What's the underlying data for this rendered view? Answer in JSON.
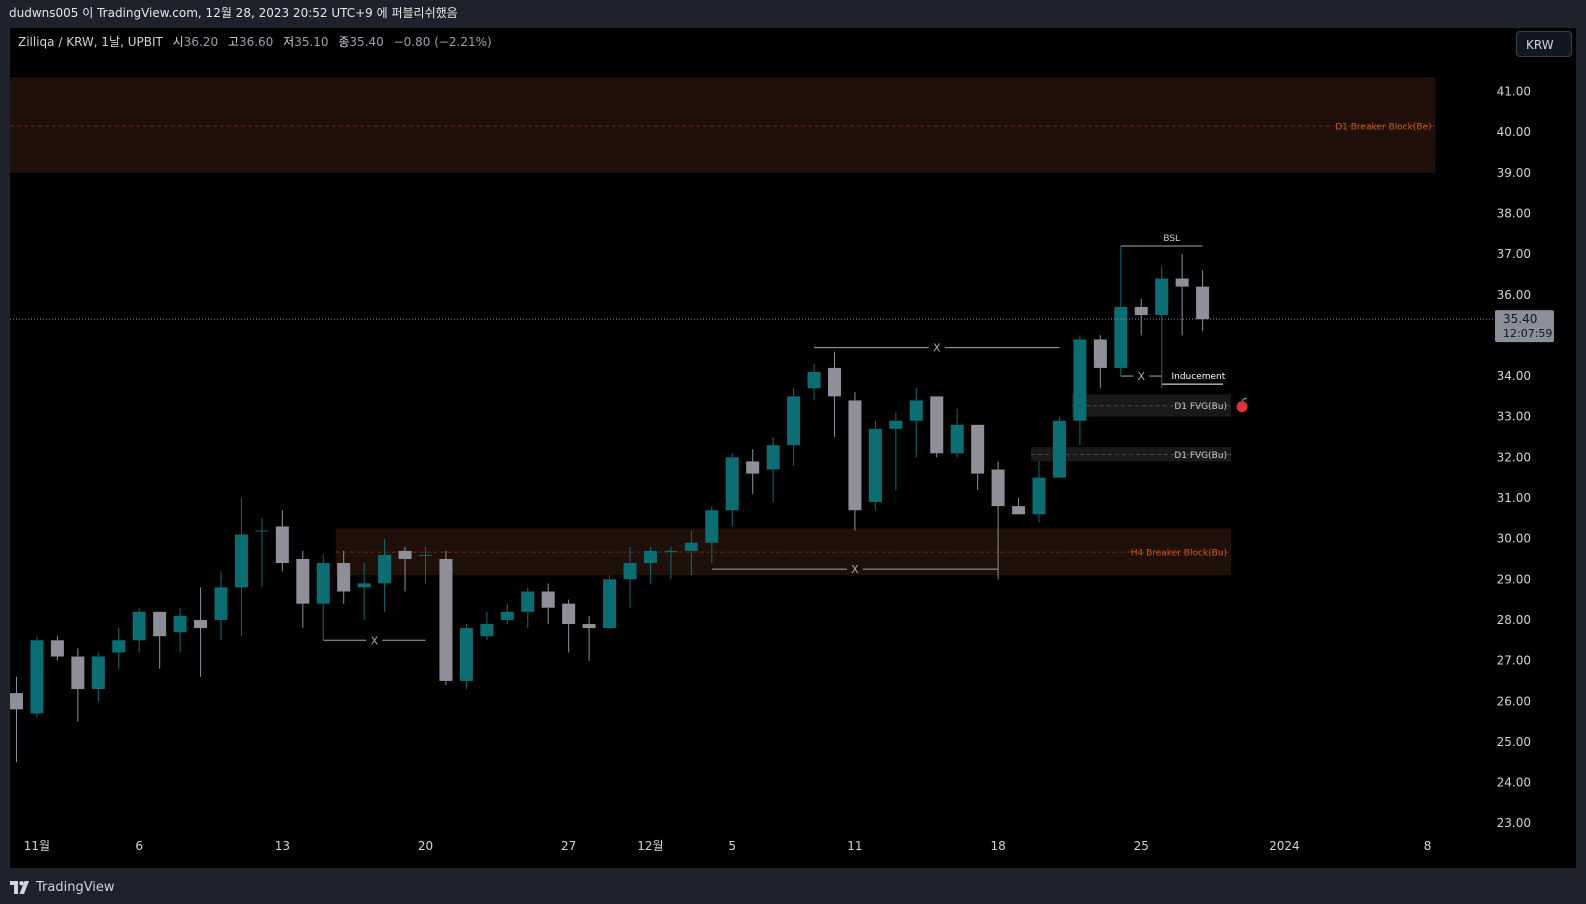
{
  "header": {
    "publish_line": "dudwns005 이 TradingView.com, 12월 28, 2023 20:52 UTC+9 에 퍼블리쉬했음"
  },
  "legend": {
    "symbol": "Zilliqa / KRW, 1날, UPBIT",
    "open_label": "시",
    "open": "36.20",
    "high_label": "고",
    "high": "36.60",
    "low_label": "저",
    "low": "35.10",
    "close_label": "종",
    "close": "35.40",
    "change": "−0.80 (−2.21%)"
  },
  "currency_button": "KRW",
  "footer": {
    "brand": "TradingView"
  },
  "colors": {
    "bull": "#0a6e73",
    "bear": "#8f8f99",
    "zone_fill": "#1f1009",
    "zone_text": "#d1581c",
    "fvg_fill": "#1a1a1a",
    "annotation": "#a4a8b0"
  },
  "chart_data": {
    "type": "candlestick",
    "symbol": "Zilliqa / KRW",
    "interval": "1D",
    "exchange": "UPBIT",
    "ylim": [
      22.6,
      41.8
    ],
    "y_ticks": [
      "41.00",
      "40.00",
      "39.00",
      "38.00",
      "37.00",
      "36.00",
      "34.00",
      "33.00",
      "32.00",
      "31.00",
      "30.00",
      "29.00",
      "28.00",
      "27.00",
      "26.00",
      "25.00",
      "24.00",
      "23.00"
    ],
    "x_ticks": [
      {
        "label": "11월",
        "bar": 1
      },
      {
        "label": "6",
        "bar": 6
      },
      {
        "label": "13",
        "bar": 13
      },
      {
        "label": "20",
        "bar": 20
      },
      {
        "label": "27",
        "bar": 27
      },
      {
        "label": "12월",
        "bar": 31
      },
      {
        "label": "5",
        "bar": 35
      },
      {
        "label": "11",
        "bar": 41
      },
      {
        "label": "18",
        "bar": 48
      },
      {
        "label": "25",
        "bar": 55
      },
      {
        "label": "2024",
        "bar": 62
      },
      {
        "label": "8",
        "bar": 69
      }
    ],
    "last_price": {
      "value": 35.4,
      "label": "35.40",
      "countdown": "12:07:59"
    },
    "candles": [
      {
        "date": "2023-10-31",
        "o": 26.2,
        "h": 26.6,
        "l": 24.5,
        "c": 25.8
      },
      {
        "date": "2023-11-01",
        "o": 25.7,
        "h": 27.6,
        "l": 25.6,
        "c": 27.5
      },
      {
        "date": "2023-11-02",
        "o": 27.5,
        "h": 27.6,
        "l": 27.0,
        "c": 27.1
      },
      {
        "date": "2023-11-03",
        "o": 27.1,
        "h": 27.3,
        "l": 25.5,
        "c": 26.3
      },
      {
        "date": "2023-11-04",
        "o": 26.3,
        "h": 27.2,
        "l": 26.0,
        "c": 27.1
      },
      {
        "date": "2023-11-05",
        "o": 27.2,
        "h": 27.8,
        "l": 26.8,
        "c": 27.5
      },
      {
        "date": "2023-11-06",
        "o": 27.5,
        "h": 28.3,
        "l": 27.2,
        "c": 28.2
      },
      {
        "date": "2023-11-07",
        "o": 28.2,
        "h": 28.2,
        "l": 26.8,
        "c": 27.6
      },
      {
        "date": "2023-11-08",
        "o": 27.7,
        "h": 28.3,
        "l": 27.2,
        "c": 28.1
      },
      {
        "date": "2023-11-09",
        "o": 28.0,
        "h": 28.8,
        "l": 26.6,
        "c": 27.8
      },
      {
        "date": "2023-11-10",
        "o": 28.0,
        "h": 29.2,
        "l": 27.5,
        "c": 28.8
      },
      {
        "date": "2023-11-11",
        "o": 28.8,
        "h": 31.0,
        "l": 27.6,
        "c": 30.1
      },
      {
        "date": "2023-11-12",
        "o": 30.2,
        "h": 30.5,
        "l": 28.8,
        "c": 30.2
      },
      {
        "date": "2023-11-13",
        "o": 30.3,
        "h": 30.7,
        "l": 29.2,
        "c": 29.4
      },
      {
        "date": "2023-11-14",
        "o": 29.5,
        "h": 29.7,
        "l": 27.8,
        "c": 28.4
      },
      {
        "date": "2023-11-15",
        "o": 28.4,
        "h": 29.6,
        "l": 27.5,
        "c": 29.4
      },
      {
        "date": "2023-11-16",
        "o": 29.4,
        "h": 29.7,
        "l": 28.4,
        "c": 28.7
      },
      {
        "date": "2023-11-17",
        "o": 28.8,
        "h": 29.4,
        "l": 28.0,
        "c": 28.9
      },
      {
        "date": "2023-11-18",
        "o": 28.9,
        "h": 30.0,
        "l": 28.2,
        "c": 29.6
      },
      {
        "date": "2023-11-19",
        "o": 29.7,
        "h": 29.8,
        "l": 28.7,
        "c": 29.5
      },
      {
        "date": "2023-11-20",
        "o": 29.6,
        "h": 29.8,
        "l": 28.9,
        "c": 29.6
      },
      {
        "date": "2023-11-21",
        "o": 29.5,
        "h": 29.7,
        "l": 26.4,
        "c": 26.5
      },
      {
        "date": "2023-11-22",
        "o": 26.5,
        "h": 27.9,
        "l": 26.3,
        "c": 27.8
      },
      {
        "date": "2023-11-23",
        "o": 27.6,
        "h": 28.2,
        "l": 27.5,
        "c": 27.9
      },
      {
        "date": "2023-11-24",
        "o": 28.0,
        "h": 28.4,
        "l": 27.9,
        "c": 28.2
      },
      {
        "date": "2023-11-25",
        "o": 28.2,
        "h": 28.8,
        "l": 27.8,
        "c": 28.7
      },
      {
        "date": "2023-11-26",
        "o": 28.7,
        "h": 28.9,
        "l": 27.9,
        "c": 28.3
      },
      {
        "date": "2023-11-27",
        "o": 28.4,
        "h": 28.5,
        "l": 27.2,
        "c": 27.9
      },
      {
        "date": "2023-11-28",
        "o": 27.9,
        "h": 28.1,
        "l": 27.0,
        "c": 27.8
      },
      {
        "date": "2023-11-29",
        "o": 27.8,
        "h": 29.1,
        "l": 27.8,
        "c": 29.0
      },
      {
        "date": "2023-11-30",
        "o": 29.0,
        "h": 29.8,
        "l": 28.3,
        "c": 29.4
      },
      {
        "date": "2023-12-01",
        "o": 29.4,
        "h": 29.8,
        "l": 28.9,
        "c": 29.7
      },
      {
        "date": "2023-12-02",
        "o": 29.7,
        "h": 29.8,
        "l": 29.0,
        "c": 29.7
      },
      {
        "date": "2023-12-03",
        "o": 29.7,
        "h": 30.2,
        "l": 29.1,
        "c": 29.9
      },
      {
        "date": "2023-12-04",
        "o": 29.9,
        "h": 30.8,
        "l": 29.4,
        "c": 30.7
      },
      {
        "date": "2023-12-05",
        "o": 30.7,
        "h": 32.1,
        "l": 30.3,
        "c": 32.0
      },
      {
        "date": "2023-12-06",
        "o": 31.9,
        "h": 32.2,
        "l": 31.1,
        "c": 31.6
      },
      {
        "date": "2023-12-07",
        "o": 31.7,
        "h": 32.5,
        "l": 30.9,
        "c": 32.3
      },
      {
        "date": "2023-12-08",
        "o": 32.3,
        "h": 33.7,
        "l": 31.8,
        "c": 33.5
      },
      {
        "date": "2023-12-09",
        "o": 33.7,
        "h": 34.3,
        "l": 33.4,
        "c": 34.1
      },
      {
        "date": "2023-12-10",
        "o": 34.2,
        "h": 34.6,
        "l": 32.5,
        "c": 33.5
      },
      {
        "date": "2023-12-11",
        "o": 33.4,
        "h": 33.6,
        "l": 30.2,
        "c": 30.7
      },
      {
        "date": "2023-12-12",
        "o": 30.9,
        "h": 32.9,
        "l": 30.7,
        "c": 32.7
      },
      {
        "date": "2023-12-13",
        "o": 32.7,
        "h": 33.1,
        "l": 31.2,
        "c": 32.9
      },
      {
        "date": "2023-12-14",
        "o": 32.9,
        "h": 33.7,
        "l": 32.0,
        "c": 33.4
      },
      {
        "date": "2023-12-15",
        "o": 33.5,
        "h": 33.5,
        "l": 32.0,
        "c": 32.1
      },
      {
        "date": "2023-12-16",
        "o": 32.1,
        "h": 33.2,
        "l": 32.0,
        "c": 32.8
      },
      {
        "date": "2023-12-17",
        "o": 32.8,
        "h": 32.8,
        "l": 31.2,
        "c": 31.6
      },
      {
        "date": "2023-12-18",
        "o": 31.7,
        "h": 31.9,
        "l": 29.0,
        "c": 30.8
      },
      {
        "date": "2023-12-19",
        "o": 30.8,
        "h": 31.0,
        "l": 30.6,
        "c": 30.6
      },
      {
        "date": "2023-12-20",
        "o": 30.6,
        "h": 31.9,
        "l": 30.4,
        "c": 31.5
      },
      {
        "date": "2023-12-21",
        "o": 31.5,
        "h": 33.0,
        "l": 31.5,
        "c": 32.9
      },
      {
        "date": "2023-12-22",
        "o": 32.9,
        "h": 35.0,
        "l": 32.3,
        "c": 34.9
      },
      {
        "date": "2023-12-23",
        "o": 34.9,
        "h": 35.0,
        "l": 33.7,
        "c": 34.2
      },
      {
        "date": "2023-12-24",
        "o": 34.2,
        "h": 37.2,
        "l": 34.0,
        "c": 35.7
      },
      {
        "date": "2023-12-25",
        "o": 35.7,
        "h": 35.9,
        "l": 35.0,
        "c": 35.5
      },
      {
        "date": "2023-12-26",
        "o": 35.5,
        "h": 36.7,
        "l": 33.7,
        "c": 36.4
      },
      {
        "date": "2023-12-27",
        "o": 36.4,
        "h": 37.0,
        "l": 35.0,
        "c": 36.2
      },
      {
        "date": "2023-12-28",
        "o": 36.2,
        "h": 36.6,
        "l": 35.1,
        "c": 35.4
      }
    ],
    "zones": [
      {
        "label": "D1 Breaker Block(Be)",
        "top": 41.35,
        "bottom": 39.0,
        "mid": 40.15,
        "from_bar": 0,
        "to_bar": 69
      },
      {
        "label": "H4 Breaker Block(Bu)",
        "top": 30.25,
        "bottom": 29.1,
        "mid": 29.67,
        "from_bar": 16,
        "to_bar": 59
      },
      {
        "label": "D1 FVG(Bu)",
        "top": 33.55,
        "bottom": 33.0,
        "mid": 33.27,
        "from_bar": 52,
        "to_bar": 59
      },
      {
        "label": "D1 FVG(Bu)",
        "top": 32.25,
        "bottom": 31.9,
        "mid": 32.07,
        "from_bar": 50,
        "to_bar": 59
      }
    ],
    "annotations": [
      {
        "label": "BSL",
        "price": 37.2,
        "from_bar": 54,
        "to_bar": 58,
        "type": "line"
      },
      {
        "label": "X",
        "price": 34.7,
        "from_bar": 39,
        "to_bar": 51,
        "type": "line"
      },
      {
        "label": "X",
        "price": 34.0,
        "from_bar": 54,
        "to_bar": 56,
        "type": "line"
      },
      {
        "label": "Inducement",
        "price": 33.8,
        "from_bar": 56,
        "to_bar": 59,
        "type": "line"
      },
      {
        "label": "X",
        "price": 29.25,
        "from_bar": 34,
        "to_bar": 48,
        "type": "line"
      },
      {
        "label": "X",
        "price": 27.5,
        "from_bar": 15,
        "to_bar": 20,
        "type": "line"
      }
    ]
  }
}
